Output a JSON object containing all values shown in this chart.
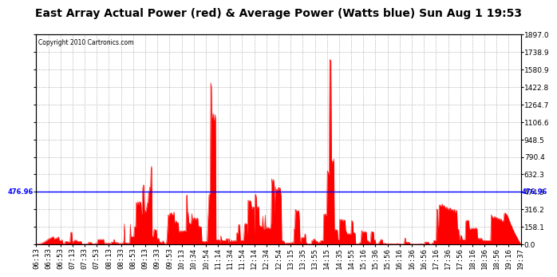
{
  "title": "East Array Actual Power (red) & Average Power (Watts blue) Sun Aug 1 19:53",
  "copyright": "Copyright 2010 Cartronics.com",
  "avg_power": 476.96,
  "ymax": 1897.0,
  "ymin": 0.0,
  "yticks_right": [
    0.0,
    158.1,
    316.2,
    474.3,
    632.3,
    790.4,
    948.5,
    1106.6,
    1264.7,
    1422.8,
    1580.9,
    1738.9,
    1897.0
  ],
  "ytick_labels_right": [
    "0.0",
    "158.1",
    "316.2",
    "474.3",
    "632.3",
    "790.4",
    "948.5",
    "1106.6",
    "1264.7",
    "1422.8",
    "1580.9",
    "1738.9",
    "1897.0"
  ],
  "left_annotation": "476.96",
  "right_annotation": "476.96",
  "bg_color": "#ffffff",
  "fill_color": "#ff0000",
  "line_color": "#0000ff",
  "grid_color": "#888888",
  "title_fontsize": 10,
  "tick_label_fontsize": 6.5,
  "x_tick_labels": [
    "06:13",
    "06:33",
    "06:53",
    "07:13",
    "07:33",
    "07:53",
    "08:13",
    "08:33",
    "08:53",
    "09:13",
    "09:33",
    "09:53",
    "10:13",
    "10:34",
    "10:54",
    "11:14",
    "11:34",
    "11:54",
    "12:14",
    "12:34",
    "12:54",
    "13:15",
    "13:35",
    "13:55",
    "14:15",
    "14:35",
    "14:55",
    "15:16",
    "15:36",
    "15:56",
    "16:16",
    "16:36",
    "16:56",
    "17:16",
    "17:36",
    "17:56",
    "18:16",
    "18:36",
    "18:56",
    "19:16",
    "19:37"
  ]
}
